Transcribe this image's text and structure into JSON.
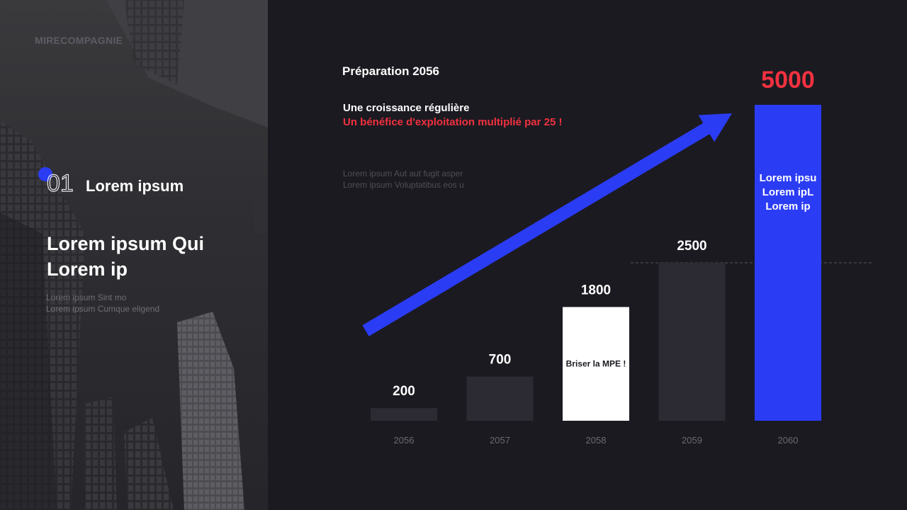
{
  "brand": "MIRECOMPAGNIE",
  "section": {
    "number": "01",
    "title": "Lorem ipsum"
  },
  "headline": [
    "Lorem ipsum Qui",
    "Lorem ip"
  ],
  "left_sub": [
    "Lorem ipsum Sint mo",
    "Lorem ipsum Cumque eligend"
  ],
  "chart_title": "Préparation 2056",
  "growth_white": "Une croissance régulière",
  "growth_red": "Un bénéfice d'exploitation multiplié par 25 !",
  "desc": [
    "Lorem ipsum Aut aut fugit asper",
    "Lorem ipsum Voluptatibus eos u"
  ],
  "colors": {
    "accent_blue": "#2b3cf5",
    "accent_red": "#f2313f",
    "bar_dark": "#2c2a33",
    "bar_white": "#ffffff"
  },
  "chart_data": {
    "type": "bar",
    "categories": [
      "2056",
      "2057",
      "2058",
      "2059",
      "2060"
    ],
    "values": [
      200,
      700,
      1800,
      2500,
      5000
    ],
    "value_labels": [
      "200",
      "700",
      "1800",
      "2500",
      "5000"
    ],
    "bar_colors": [
      "#2c2a33",
      "#2c2a33",
      "#ffffff",
      "#2c2a33",
      "#2b3cf5"
    ],
    "bar_texts": [
      "",
      "",
      "Briser la MPE !",
      "",
      "Lorem ipsu\nLorem ipL\nLorem ip"
    ],
    "reference_line": 2500,
    "trend_arrow": true,
    "title": "Préparation 2056",
    "xlabel": "",
    "ylabel": ""
  }
}
